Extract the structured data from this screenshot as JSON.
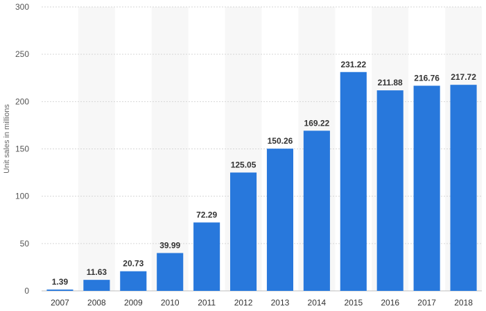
{
  "chart_data": {
    "type": "bar",
    "categories": [
      "2007",
      "2008",
      "2009",
      "2010",
      "2011",
      "2012",
      "2013",
      "2014",
      "2015",
      "2016",
      "2017",
      "2018"
    ],
    "values": [
      1.39,
      11.63,
      20.73,
      39.99,
      72.29,
      125.05,
      150.26,
      169.22,
      231.22,
      211.88,
      216.76,
      217.72
    ],
    "value_labels": [
      "1.39",
      "11.63",
      "20.73",
      "39.99",
      "72.29",
      "125.05",
      "150.26",
      "169.22",
      "231.22",
      "211.88",
      "216.76",
      "217.72"
    ],
    "ylabel": "Unit sales in millions",
    "xlabel": "",
    "ylim": [
      0,
      300
    ],
    "yticks": [
      0,
      50,
      100,
      150,
      200,
      250,
      300
    ],
    "grid": true,
    "bar_color": "#2878dc",
    "band_color": "#f7f7f7"
  }
}
